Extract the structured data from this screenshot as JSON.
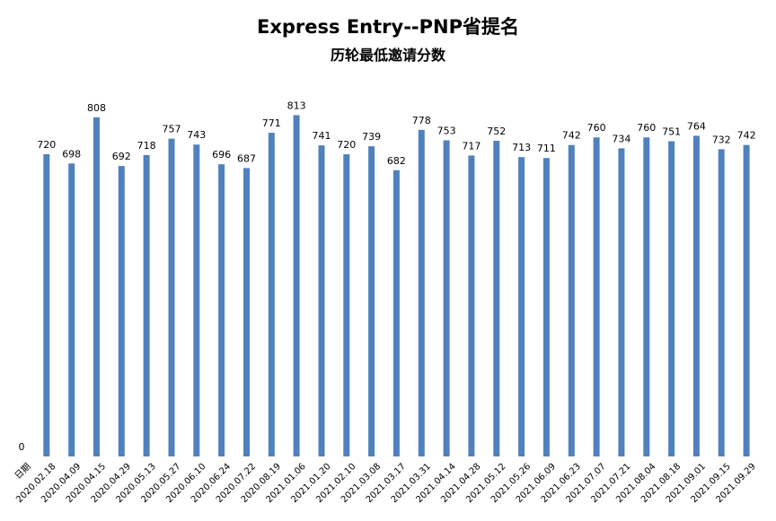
{
  "chart_data": {
    "type": "bar",
    "title": "Express Entry--PNP省提名",
    "subtitle": "历轮最低邀请分数",
    "categories": [
      "日期",
      "2020.02.18",
      "2020.04.09",
      "2020.04.15",
      "2020.04.29",
      "2020.05.13",
      "2020.05.27",
      "2020.06.10",
      "2020.06.24",
      "2020.07.22",
      "2020.08.19",
      "2021.01.06",
      "2021.01.20",
      "2021.02.10",
      "2021.03.08",
      "2021.03.17",
      "2021.03.31",
      "2021.04.14",
      "2021.04.28",
      "2021.05.12",
      "2021.05.26",
      "2021.06.09",
      "2021.06.23",
      "2021.07.07",
      "2021.07.21",
      "2021.08.04",
      "2021.08.18",
      "2021.09.01",
      "2021.09.15",
      "2021.09.29"
    ],
    "values": [
      0,
      720,
      698,
      808,
      692,
      718,
      757,
      743,
      696,
      687,
      771,
      813,
      741,
      720,
      739,
      682,
      778,
      753,
      717,
      752,
      713,
      711,
      742,
      760,
      734,
      760,
      751,
      764,
      732,
      742
    ],
    "ylim": [
      0,
      900
    ],
    "grid": false,
    "legend": "none",
    "bar_color": "#4f81bd"
  }
}
